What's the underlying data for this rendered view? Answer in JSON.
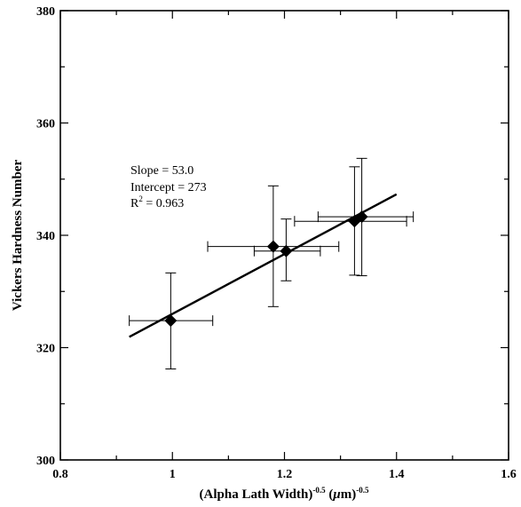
{
  "chart_data": {
    "type": "scatter",
    "title": "",
    "xlabel": "(Alpha Lath Width)",
    "xlabel_parts": [
      {
        "text": "(Alpha Lath Width)",
        "style": "normal"
      },
      {
        "text": "-0.5",
        "style": "sup"
      },
      {
        "text": " (",
        "style": "normal"
      },
      {
        "text": "μ",
        "style": "italic"
      },
      {
        "text": "m)",
        "style": "normal"
      },
      {
        "text": "-0.5",
        "style": "sup"
      }
    ],
    "ylabel": "Vickers Hardness Number",
    "xlim": [
      0.8,
      1.6
    ],
    "ylim": [
      300,
      380
    ],
    "x_ticks": [
      0.8,
      1.0,
      1.2,
      1.4,
      1.6
    ],
    "x_tick_labels": [
      "0.8",
      "1",
      "1.2",
      "1.4",
      "1.6"
    ],
    "x_minor_step": 0.1,
    "y_ticks": [
      300,
      320,
      340,
      360,
      380
    ],
    "y_tick_labels": [
      "300",
      "320",
      "340",
      "360",
      "380"
    ],
    "y_minor_step": 10,
    "grid": false,
    "points": [
      {
        "x": 0.997,
        "y": 324.8,
        "xerr_low": 0.923,
        "xerr_high": 1.072,
        "yerr_low": 316.2,
        "yerr_high": 333.3
      },
      {
        "x": 1.18,
        "y": 338.0,
        "xerr_low": 1.063,
        "xerr_high": 1.297,
        "yerr_low": 327.3,
        "yerr_high": 348.8
      },
      {
        "x": 1.203,
        "y": 337.2,
        "xerr_low": 1.146,
        "xerr_high": 1.264,
        "yerr_low": 331.9,
        "yerr_high": 342.9
      },
      {
        "x": 1.325,
        "y": 342.5,
        "xerr_low": 1.218,
        "xerr_high": 1.418,
        "yerr_low": 332.9,
        "yerr_high": 352.2
      },
      {
        "x": 1.338,
        "y": 343.3,
        "xerr_low": 1.26,
        "xerr_high": 1.43,
        "yerr_low": 332.8,
        "yerr_high": 353.7
      }
    ],
    "fit_line": {
      "x": [
        0.923,
        1.4
      ],
      "y": [
        321.9,
        347.3
      ]
    },
    "annotation": {
      "slope": "Slope = 53.0",
      "intercept": "Intercept = 273",
      "r2_prefix": "R",
      "r2_sup": "2",
      "r2_suffix": " = 0.963"
    }
  }
}
